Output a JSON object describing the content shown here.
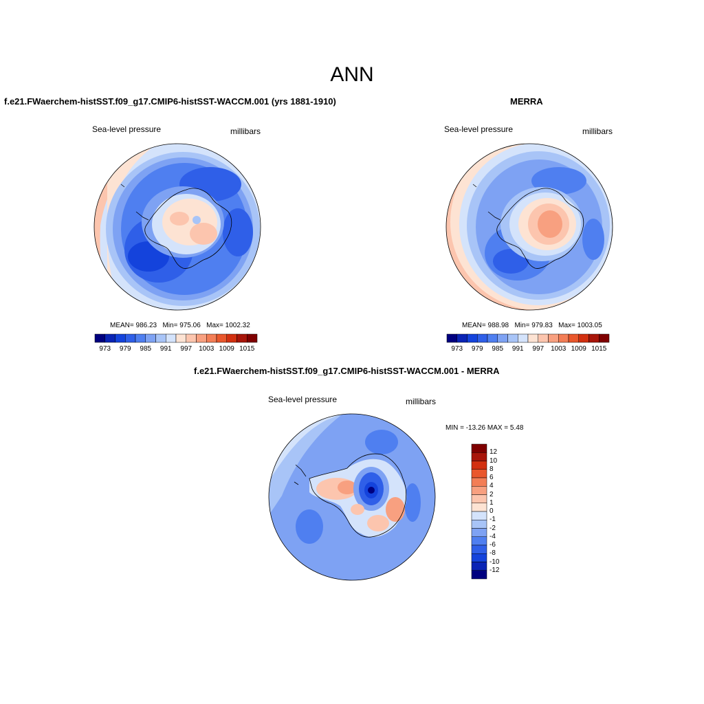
{
  "title": "ANN",
  "panels": [
    {
      "id": "model",
      "heading": "f.e21.FWaerchem-histSST.f09_g17.CMIP6-histSST-WACCM.001 (yrs 1881-1910)",
      "left_label": "Sea-level pressure",
      "right_label": "millibars",
      "mean_label": "MEAN=",
      "mean": "986.23",
      "min_label": "Min=",
      "min": "975.06",
      "max_label": "Max=",
      "max": "1002.32"
    },
    {
      "id": "obs",
      "heading": "MERRA",
      "left_label": "Sea-level pressure",
      "right_label": "millibars",
      "mean_label": "MEAN=",
      "mean": "988.98",
      "min_label": "Min=",
      "min": "979.83",
      "max_label": "Max=",
      "max": "1003.05"
    },
    {
      "id": "diff",
      "heading": "f.e21.FWaerchem-histSST.f09_g17.CMIP6-histSST-WACCM.001 - MERRA",
      "left_label": "Sea-level pressure",
      "right_label": "millibars",
      "minmax_text": "MIN = -13.26  MAX =   5.48"
    }
  ],
  "colorbar_horizontal": {
    "colors": [
      "#00007f",
      "#0a24b5",
      "#1443dc",
      "#2f5fe8",
      "#4f7ff0",
      "#7ea2f3",
      "#a8c4f7",
      "#d4e3fb",
      "#fde3d3",
      "#fcc5ae",
      "#f8a080",
      "#f37e56",
      "#e9572c",
      "#d23010",
      "#a8150a",
      "#7f0000"
    ],
    "tick_labels": [
      "973",
      "979",
      "985",
      "991",
      "997",
      "1003",
      "1009",
      "1015"
    ]
  },
  "colorbar_vertical": {
    "colors": [
      "#7f0000",
      "#a8150a",
      "#d23010",
      "#e9572c",
      "#f37e56",
      "#f8a080",
      "#fcc5ae",
      "#fde3d3",
      "#d4e3fb",
      "#a8c4f7",
      "#7ea2f3",
      "#4f7ff0",
      "#2f5fe8",
      "#1443dc",
      "#0a24b5",
      "#00007f"
    ],
    "tick_labels": [
      "12",
      "10",
      "8",
      "6",
      "4",
      "2",
      "1",
      "0",
      "-1",
      "-2",
      "-4",
      "-6",
      "-8",
      "-10",
      "-12"
    ]
  }
}
